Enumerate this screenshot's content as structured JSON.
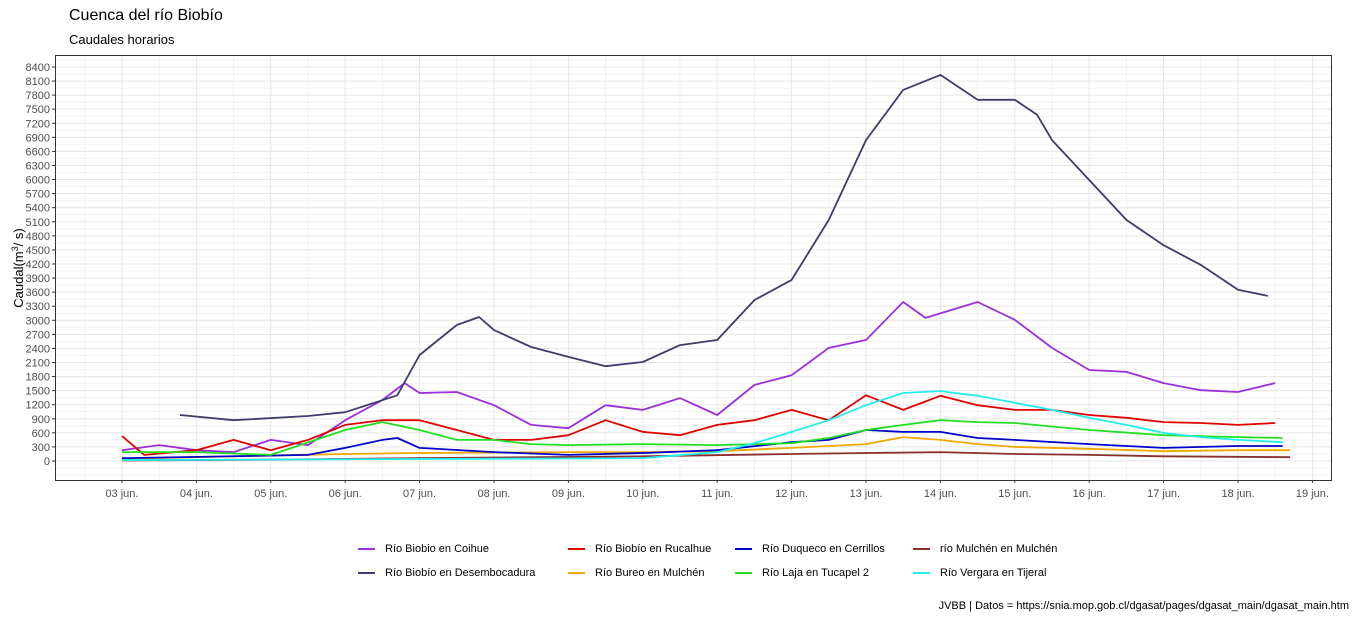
{
  "chart_data": {
    "type": "line",
    "title": "Cuenca del río Biobío",
    "subtitle": "Caudales horarios",
    "xlabel": "",
    "ylabel": "Caudal(m³/ s)",
    "ylabel_parts": {
      "base": "Caudal(m",
      "sup": "3",
      "tail": "/ s)"
    },
    "xlim": [
      2.1,
      19.25
    ],
    "ylim": [
      -405,
      8655
    ],
    "grid": true,
    "legend_position": "bottom",
    "y_ticks": [
      0,
      300,
      600,
      900,
      1200,
      1500,
      1800,
      2100,
      2400,
      2700,
      3000,
      3300,
      3600,
      3900,
      4200,
      4500,
      4800,
      5100,
      5400,
      5700,
      6000,
      6300,
      6600,
      6900,
      7200,
      7500,
      7800,
      8100,
      8400
    ],
    "x_ticks": [
      {
        "day": 3,
        "label": "03 jun."
      },
      {
        "day": 4,
        "label": "04 jun."
      },
      {
        "day": 5,
        "label": "05 jun."
      },
      {
        "day": 6,
        "label": "06 jun."
      },
      {
        "day": 7,
        "label": "07 jun."
      },
      {
        "day": 8,
        "label": "08 jun."
      },
      {
        "day": 9,
        "label": "09 jun."
      },
      {
        "day": 10,
        "label": "10 jun."
      },
      {
        "day": 11,
        "label": "11 jun."
      },
      {
        "day": 12,
        "label": "12 jun."
      },
      {
        "day": 13,
        "label": "13 jun."
      },
      {
        "day": 14,
        "label": "14 jun."
      },
      {
        "day": 15,
        "label": "15 jun."
      },
      {
        "day": 16,
        "label": "16 jun."
      },
      {
        "day": 17,
        "label": "17 jun."
      },
      {
        "day": 18,
        "label": "18 jun."
      },
      {
        "day": 19,
        "label": "19 jun."
      }
    ],
    "series": [
      {
        "name": "Río Biobio en Coihue",
        "color": "#9b30d9",
        "x": [
          3,
          3.5,
          4,
          4.5,
          5,
          5.5,
          6,
          6.5,
          6.8,
          7,
          7.5,
          8,
          8.5,
          9,
          9.5,
          10,
          10.5,
          11,
          11.5,
          12,
          12.5,
          13,
          13.5,
          13.8,
          14.5,
          15,
          15.5,
          16,
          16.5,
          17,
          17.5,
          18,
          18.5
        ],
        "y": [
          230,
          340,
          230,
          190,
          450,
          340,
          870,
          1300,
          1660,
          1450,
          1470,
          1190,
          770,
          700,
          1190,
          1090,
          1340,
          980,
          1620,
          1830,
          2410,
          2580,
          3390,
          3050,
          3390,
          3010,
          2410,
          1940,
          1900,
          1660,
          1510,
          1470,
          1660
        ]
      },
      {
        "name": "Río Biobío en Desembocadura",
        "color": "#3d3d6b",
        "x": [
          3.78,
          4.5,
          5.5,
          6,
          6.7,
          7,
          7.5,
          7.8,
          8,
          8.5,
          9,
          9.5,
          10,
          10.5,
          11,
          11.5,
          12,
          12.5,
          13,
          13.5,
          14,
          14.5,
          15,
          15.3,
          15.5,
          16,
          16.5,
          17,
          17.5,
          18,
          18.4
        ],
        "y": [
          980,
          870,
          960,
          1040,
          1400,
          2260,
          2900,
          3070,
          2790,
          2430,
          2220,
          2020,
          2110,
          2470,
          2580,
          3430,
          3860,
          5140,
          6840,
          7910,
          8230,
          7700,
          7700,
          7380,
          6840,
          5990,
          5140,
          4600,
          4180,
          3650,
          3520
        ]
      },
      {
        "name": "Río Biobío en Rucalhue",
        "color": "#e00000",
        "x": [
          3,
          3.3,
          4,
          4.5,
          5,
          5.5,
          6,
          6.5,
          7,
          7.5,
          8,
          8.5,
          9,
          9.5,
          10,
          10.5,
          11,
          11.5,
          12,
          12.5,
          13,
          13.5,
          14,
          14.5,
          15,
          15.5,
          16,
          16.5,
          17,
          17.5,
          18,
          18.5
        ],
        "y": [
          530,
          130,
          230,
          450,
          230,
          450,
          770,
          870,
          870,
          660,
          450,
          450,
          550,
          870,
          620,
          550,
          770,
          870,
          1090,
          870,
          1400,
          1090,
          1390,
          1190,
          1090,
          1090,
          980,
          920,
          830,
          810,
          770,
          810
        ]
      },
      {
        "name": "Río Bureo en Mulchén",
        "color": "#f0a800",
        "x": [
          3,
          6,
          7,
          9,
          10,
          11,
          12,
          13,
          13.5,
          14,
          14.5,
          15,
          16,
          17,
          18,
          18.7
        ],
        "y": [
          50,
          150,
          170,
          190,
          190,
          210,
          280,
          360,
          510,
          450,
          360,
          300,
          260,
          210,
          230,
          230
        ]
      },
      {
        "name": "Río Duqueco en Cerrillos",
        "color": "#0000c8",
        "x": [
          3,
          5.5,
          6,
          6.5,
          6.7,
          7,
          8,
          9,
          10,
          11,
          12,
          12.5,
          13,
          13.5,
          14,
          14.5,
          15,
          16,
          17,
          18,
          18.6
        ],
        "y": [
          60,
          130,
          280,
          450,
          490,
          280,
          190,
          130,
          170,
          230,
          400,
          450,
          660,
          620,
          620,
          490,
          450,
          360,
          280,
          320,
          320
        ]
      },
      {
        "name": "Río Laja en Tucapel 2",
        "color": "#22e022",
        "x": [
          3,
          4,
          5,
          6,
          6.5,
          7,
          7.5,
          8,
          8.5,
          9,
          10,
          11,
          12,
          12.5,
          13,
          13.5,
          14,
          14.5,
          15,
          16,
          17,
          18,
          18.6
        ],
        "y": [
          190,
          190,
          130,
          660,
          830,
          660,
          450,
          450,
          360,
          340,
          360,
          340,
          380,
          490,
          660,
          770,
          870,
          830,
          810,
          660,
          550,
          510,
          490
        ]
      },
      {
        "name": "río Mulchén en Mulchén",
        "color": "#8b2e2e",
        "x": [
          3,
          5,
          7,
          10,
          12,
          13,
          14,
          15,
          16,
          17,
          18.7
        ],
        "y": [
          10,
          30,
          60,
          100,
          150,
          170,
          190,
          150,
          130,
          100,
          80
        ]
      },
      {
        "name": "Río Vergara en Tijeral",
        "color": "#22eeee",
        "x": [
          3,
          10,
          11,
          11.5,
          12,
          12.5,
          13,
          13.5,
          14,
          14.5,
          15,
          15.5,
          16,
          16.5,
          17,
          17.5,
          18,
          18.6
        ],
        "y": [
          20,
          60,
          190,
          380,
          620,
          870,
          1190,
          1450,
          1490,
          1390,
          1240,
          1090,
          920,
          770,
          600,
          510,
          450,
          400
        ]
      }
    ],
    "legend_order": [
      0,
      2,
      4,
      6,
      1,
      3,
      5,
      7
    ]
  },
  "caption": "JVBB  | Datos = https://snia.mop.gob.cl/dgasat/pages/dgasat_main/dgasat_main.htm"
}
